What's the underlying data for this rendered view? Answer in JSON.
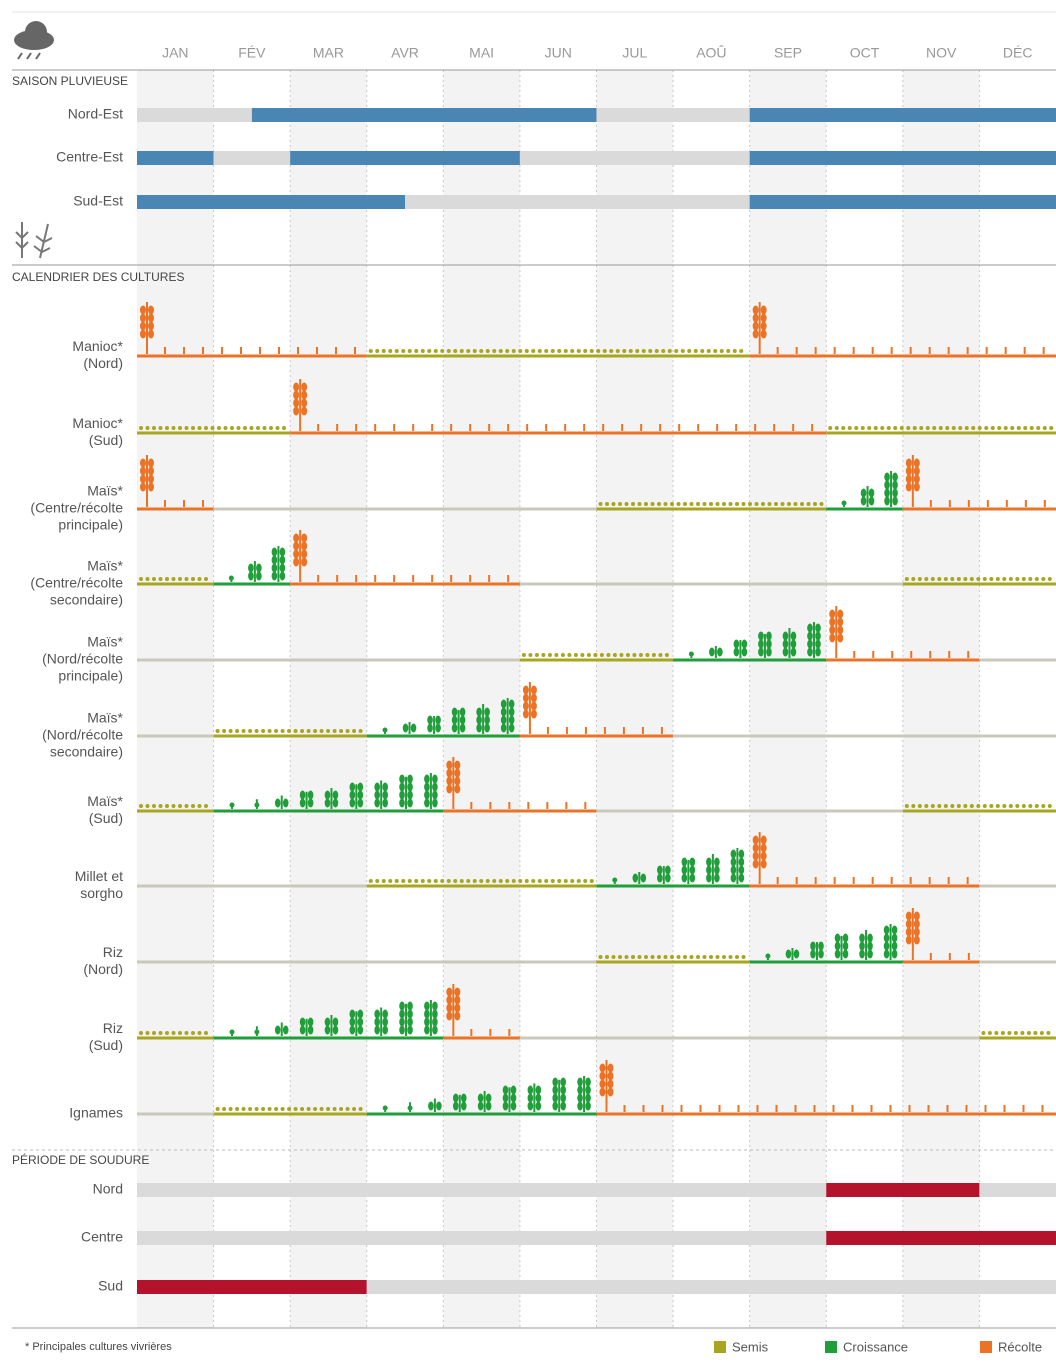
{
  "chart_data": {
    "type": "calendar",
    "months": [
      "JAN",
      "FÉV",
      "MAR",
      "AVR",
      "MAI",
      "JUN",
      "JUL",
      "AOÛ",
      "SEP",
      "OCT",
      "NOV",
      "DÉC"
    ],
    "xlim": [
      0,
      12
    ],
    "legend": [
      {
        "name": "Semis",
        "color": "#a8a521"
      },
      {
        "name": "Croissance",
        "color": "#1f9e3a"
      },
      {
        "name": "Récolte",
        "color": "#ea7325"
      }
    ],
    "footnote": "* Principales cultures vivrières",
    "sections": [
      {
        "title": "SAISON PLUVIEUSE",
        "rows": [
          {
            "label": [
              "Nord-Est"
            ],
            "segments": [
              {
                "start": 0,
                "end": 1.5,
                "color": "#dadada"
              },
              {
                "start": 1.5,
                "end": 6,
                "color": "#4a86b4"
              },
              {
                "start": 6,
                "end": 8,
                "color": "#dadada"
              },
              {
                "start": 8,
                "end": 12,
                "color": "#4a86b4"
              }
            ]
          },
          {
            "label": [
              "Centre-Est"
            ],
            "segments": [
              {
                "start": 0,
                "end": 1,
                "color": "#4a86b4"
              },
              {
                "start": 1,
                "end": 2,
                "color": "#dadada"
              },
              {
                "start": 2,
                "end": 5,
                "color": "#4a86b4"
              },
              {
                "start": 5,
                "end": 8,
                "color": "#dadada"
              },
              {
                "start": 8,
                "end": 12,
                "color": "#4a86b4"
              }
            ]
          },
          {
            "label": [
              "Sud-Est"
            ],
            "segments": [
              {
                "start": 0,
                "end": 3.5,
                "color": "#4a86b4"
              },
              {
                "start": 3.5,
                "end": 8,
                "color": "#dadada"
              },
              {
                "start": 8,
                "end": 12,
                "color": "#4a86b4"
              }
            ]
          }
        ]
      },
      {
        "title": "CALENDRIER DES CULTURES",
        "rows": [
          {
            "label": [
              "Manioc*",
              "(Nord)"
            ],
            "segments": [
              {
                "start": 0,
                "end": 3,
                "color": "#ea7325"
              },
              {
                "start": 3,
                "end": 8,
                "color": "#a8a521"
              },
              {
                "start": 8,
                "end": 12,
                "color": "#ea7325"
              }
            ]
          },
          {
            "label": [
              "Manioc*",
              "(Sud)"
            ],
            "segments": [
              {
                "start": 0,
                "end": 2,
                "color": "#a8a521"
              },
              {
                "start": 2,
                "end": 9,
                "color": "#ea7325"
              },
              {
                "start": 9,
                "end": 12,
                "color": "#a8a521"
              }
            ]
          },
          {
            "label": [
              "Maïs*",
              "(Centre/récolte",
              "principale)"
            ],
            "segments": [
              {
                "start": 0,
                "end": 1,
                "color": "#ea7325"
              },
              {
                "start": 1,
                "end": 6,
                "color": "#c9c9bb"
              },
              {
                "start": 6,
                "end": 9,
                "color": "#a8a521"
              },
              {
                "start": 9,
                "end": 10,
                "color": "#1f9e3a"
              },
              {
                "start": 10,
                "end": 12,
                "color": "#ea7325"
              }
            ]
          },
          {
            "label": [
              "Maïs*",
              "(Centre/récolte",
              "secondaire)"
            ],
            "segments": [
              {
                "start": 0,
                "end": 1,
                "color": "#a8a521"
              },
              {
                "start": 1,
                "end": 2,
                "color": "#1f9e3a"
              },
              {
                "start": 2,
                "end": 5,
                "color": "#ea7325"
              },
              {
                "start": 5,
                "end": 10,
                "color": "#c9c9bb"
              },
              {
                "start": 10,
                "end": 12,
                "color": "#a8a521"
              }
            ]
          },
          {
            "label": [
              "Maïs*",
              "(Nord/récolte",
              "principale)"
            ],
            "segments": [
              {
                "start": 0,
                "end": 5,
                "color": "#c9c9bb"
              },
              {
                "start": 5,
                "end": 7,
                "color": "#a8a521"
              },
              {
                "start": 7,
                "end": 9,
                "color": "#1f9e3a"
              },
              {
                "start": 9,
                "end": 11,
                "color": "#ea7325"
              },
              {
                "start": 11,
                "end": 12,
                "color": "#c9c9bb"
              }
            ]
          },
          {
            "label": [
              "Maïs*",
              "(Nord/récolte",
              "secondaire)"
            ],
            "segments": [
              {
                "start": 0,
                "end": 1,
                "color": "#c9c9bb"
              },
              {
                "start": 1,
                "end": 3,
                "color": "#a8a521"
              },
              {
                "start": 3,
                "end": 5,
                "color": "#1f9e3a"
              },
              {
                "start": 5,
                "end": 7,
                "color": "#ea7325"
              },
              {
                "start": 7,
                "end": 12,
                "color": "#c9c9bb"
              }
            ]
          },
          {
            "label": [
              "Maïs*",
              "(Sud)"
            ],
            "segments": [
              {
                "start": 0,
                "end": 1,
                "color": "#a8a521"
              },
              {
                "start": 1,
                "end": 4,
                "color": "#1f9e3a"
              },
              {
                "start": 4,
                "end": 6,
                "color": "#ea7325"
              },
              {
                "start": 6,
                "end": 10,
                "color": "#c9c9bb"
              },
              {
                "start": 10,
                "end": 12,
                "color": "#a8a521"
              }
            ]
          },
          {
            "label": [
              "Millet et",
              "sorgho"
            ],
            "segments": [
              {
                "start": 0,
                "end": 3,
                "color": "#c9c9bb"
              },
              {
                "start": 3,
                "end": 6,
                "color": "#a8a521"
              },
              {
                "start": 6,
                "end": 8,
                "color": "#1f9e3a"
              },
              {
                "start": 8,
                "end": 11,
                "color": "#ea7325"
              },
              {
                "start": 11,
                "end": 12,
                "color": "#c9c9bb"
              }
            ]
          },
          {
            "label": [
              "Riz",
              "(Nord)"
            ],
            "segments": [
              {
                "start": 0,
                "end": 6,
                "color": "#c9c9bb"
              },
              {
                "start": 6,
                "end": 8,
                "color": "#a8a521"
              },
              {
                "start": 8,
                "end": 10,
                "color": "#1f9e3a"
              },
              {
                "start": 10,
                "end": 11,
                "color": "#ea7325"
              },
              {
                "start": 11,
                "end": 12,
                "color": "#c9c9bb"
              }
            ]
          },
          {
            "label": [
              "Riz",
              "(Sud)"
            ],
            "segments": [
              {
                "start": 0,
                "end": 1,
                "color": "#a8a521"
              },
              {
                "start": 1,
                "end": 4,
                "color": "#1f9e3a"
              },
              {
                "start": 4,
                "end": 5,
                "color": "#ea7325"
              },
              {
                "start": 5,
                "end": 11,
                "color": "#c9c9bb"
              },
              {
                "start": 11,
                "end": 12,
                "color": "#a8a521"
              }
            ]
          },
          {
            "label": [
              "Ignames"
            ],
            "segments": [
              {
                "start": 0,
                "end": 1,
                "color": "#c9c9bb"
              },
              {
                "start": 1,
                "end": 3,
                "color": "#a8a521"
              },
              {
                "start": 3,
                "end": 6,
                "color": "#1f9e3a"
              },
              {
                "start": 6,
                "end": 12,
                "color": "#ea7325"
              }
            ]
          }
        ]
      },
      {
        "title": "PÉRIODE DE SOUDURE",
        "rows": [
          {
            "label": [
              "Nord"
            ],
            "segments": [
              {
                "start": 0,
                "end": 9,
                "color": "#dadada"
              },
              {
                "start": 9,
                "end": 11,
                "color": "#b5122b"
              },
              {
                "start": 11,
                "end": 12,
                "color": "#dadada"
              }
            ]
          },
          {
            "label": [
              "Centre"
            ],
            "segments": [
              {
                "start": 0,
                "end": 9,
                "color": "#dadada"
              },
              {
                "start": 9,
                "end": 12,
                "color": "#b5122b"
              }
            ]
          },
          {
            "label": [
              "Sud"
            ],
            "segments": [
              {
                "start": 0,
                "end": 3,
                "color": "#b5122b"
              },
              {
                "start": 3,
                "end": 12,
                "color": "#dadada"
              }
            ]
          }
        ]
      }
    ]
  }
}
